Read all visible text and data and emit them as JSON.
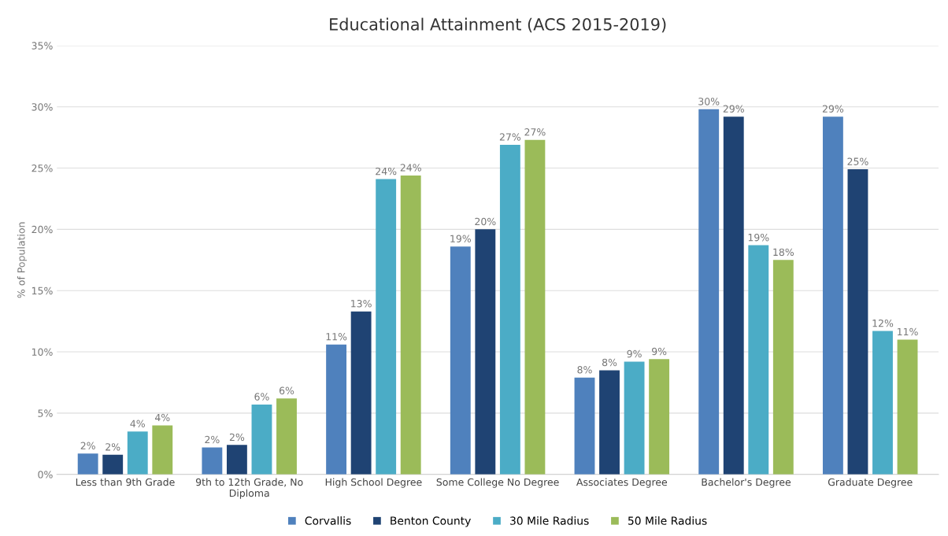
{
  "chart_data": {
    "type": "bar",
    "title": "Educational Attainment (ACS 2015-2019)",
    "ylabel": "% of Population",
    "categories": [
      "Less than 9th Grade",
      "9th to 12th Grade, No\nDiploma",
      "High School Degree",
      "Some College No Degree",
      "Associates Degree",
      "Bachelor's Degree",
      "Graduate Degree"
    ],
    "series": [
      {
        "name": "Corvallis",
        "color": "#4f81bd",
        "values": [
          1.7,
          2.2,
          10.6,
          18.6,
          7.9,
          29.8,
          29.2
        ],
        "value_labels": [
          "2%",
          "2%",
          "11%",
          "19%",
          "8%",
          "30%",
          "29%"
        ]
      },
      {
        "name": "Benton County",
        "color": "#1f4373",
        "values": [
          1.6,
          2.4,
          13.3,
          20.0,
          8.5,
          29.2,
          24.9
        ],
        "value_labels": [
          "2%",
          "2%",
          "13%",
          "20%",
          "8%",
          "29%",
          "25%"
        ]
      },
      {
        "name": "30 Mile Radius",
        "color": "#4bacc6",
        "values": [
          3.5,
          5.7,
          24.1,
          26.9,
          9.2,
          18.7,
          11.7
        ],
        "value_labels": [
          "4%",
          "6%",
          "24%",
          "27%",
          "9%",
          "19%",
          "12%"
        ]
      },
      {
        "name": "50 Mile Radius",
        "color": "#9bbb59",
        "values": [
          4.0,
          6.2,
          24.4,
          27.3,
          9.4,
          17.5,
          11.0
        ],
        "value_labels": [
          "4%",
          "6%",
          "24%",
          "27%",
          "9%",
          "18%",
          "11%"
        ]
      }
    ],
    "ylim": [
      0,
      35
    ],
    "yticks": [
      {
        "value": 0,
        "label": "0%"
      },
      {
        "value": 5,
        "label": "5%"
      },
      {
        "value": 10,
        "label": "10%"
      },
      {
        "value": 15,
        "label": "15%"
      },
      {
        "value": 20,
        "label": "20%"
      },
      {
        "value": 25,
        "label": "25%"
      },
      {
        "value": 30,
        "label": "30%"
      },
      {
        "value": 35,
        "label": "35%"
      }
    ],
    "grid": "y",
    "legend": "bottom"
  }
}
